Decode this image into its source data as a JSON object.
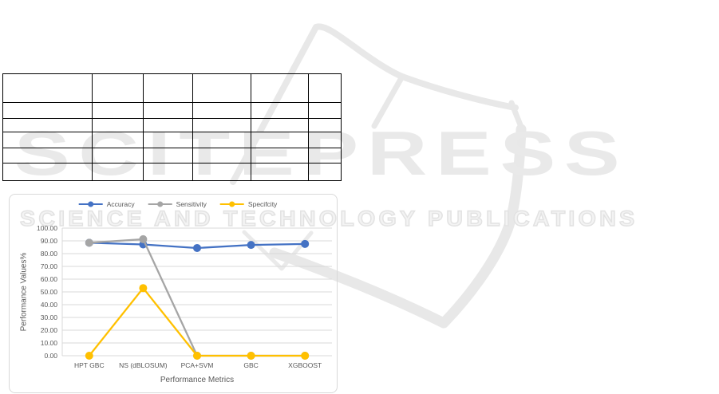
{
  "watermark": {
    "line1": "SCITEPRESS",
    "line2": "SCIENCE AND TECHNOLOGY PUBLICATIONS"
  },
  "table": {
    "rows": [
      [
        "",
        "",
        "",
        "",
        "",
        ""
      ],
      [
        "",
        "",
        "",
        "",
        "",
        ""
      ],
      [
        "",
        "",
        "",
        "",
        "",
        ""
      ],
      [
        "",
        "",
        "",
        "",
        "",
        ""
      ],
      [
        "",
        "",
        "",
        "",
        "",
        ""
      ],
      [
        "",
        "",
        "",
        "",
        "",
        ""
      ]
    ]
  },
  "chart_data": {
    "type": "line",
    "title": "",
    "xlabel": "Performance Metrics",
    "ylabel": "Performance Values%",
    "categories": [
      "HPT GBC",
      "NS (dBLOSUM)",
      "PCA+SVM",
      "GBC",
      "XGBOOST"
    ],
    "series": [
      {
        "name": "Accuracy",
        "color": "#4472C4",
        "values": [
          88.5,
          87.2,
          84.4,
          86.8,
          87.6
        ]
      },
      {
        "name": "Sensitivity",
        "color": "#A5A5A5",
        "values": [
          88.5,
          91.3,
          0,
          0,
          0
        ]
      },
      {
        "name": "Specifcity",
        "color": "#FFC000",
        "values": [
          0,
          53,
          0,
          0,
          0
        ]
      }
    ],
    "ylim": [
      0,
      100
    ],
    "y_ticks": [
      "0.00",
      "10.00",
      "20.00",
      "30.00",
      "40.00",
      "50.00",
      "60.00",
      "70.00",
      "80.00",
      "90.00",
      "100.00"
    ],
    "grid": true,
    "legend_position": "top"
  }
}
